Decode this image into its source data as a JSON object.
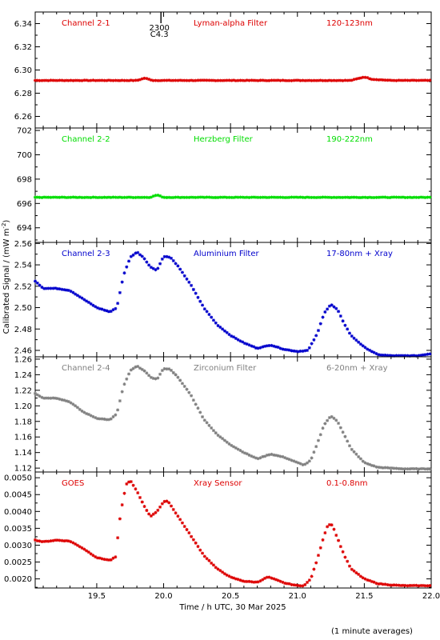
{
  "figure": {
    "ylabel": "Calibrated Signal / (mW m",
    "ylabel_sup": "-2",
    "ylabel_close": ")",
    "xlabel": "Time / h UTC, 30 Mar 2025",
    "footnote": "(1 minute averages)",
    "flare_marker": {
      "line1": "2300",
      "line2": "C4.3",
      "time": 19.98
    }
  },
  "chart_data": [
    {
      "type": "scatter",
      "panel_id": "ch2-1",
      "color": "#dd0000",
      "labels": [
        "Channel 2-1",
        "Lyman-alpha Filter",
        "120-123nm"
      ],
      "xlim": [
        19.04,
        22.0
      ],
      "ylim": [
        6.25,
        6.35
      ],
      "yticks": [
        6.26,
        6.28,
        6.3,
        6.32,
        6.34
      ],
      "ytick_labels": [
        "6.26",
        "6.28",
        "6.30",
        "6.32",
        "6.34"
      ],
      "series": [
        {
          "x": [
            19.04,
            19.8,
            19.86,
            19.92,
            20.5,
            21.4,
            21.5,
            21.56,
            21.7,
            22.0
          ],
          "y": [
            6.291,
            6.291,
            6.293,
            6.291,
            6.291,
            6.291,
            6.294,
            6.292,
            6.291,
            6.291
          ]
        }
      ]
    },
    {
      "type": "scatter",
      "panel_id": "ch2-2",
      "color": "#00dd00",
      "labels": [
        "Channel 2-2",
        "Herzberg Filter",
        "190-222nm"
      ],
      "xlim": [
        19.04,
        22.0
      ],
      "ylim": [
        692.8,
        702.2
      ],
      "yticks": [
        694,
        696,
        698,
        700,
        702
      ],
      "ytick_labels": [
        "694",
        "696",
        "698",
        "700",
        "702"
      ],
      "series": [
        {
          "x": [
            19.04,
            19.9,
            19.95,
            20.0,
            22.0
          ],
          "y": [
            696.5,
            696.5,
            696.7,
            696.5,
            696.5
          ]
        }
      ]
    },
    {
      "type": "scatter",
      "panel_id": "ch2-3",
      "color": "#0000cc",
      "labels": [
        "Channel 2-3",
        "Aluminium Filter",
        "17-80nm + Xray"
      ],
      "xlim": [
        19.04,
        22.0
      ],
      "ylim": [
        2.454,
        2.561
      ],
      "yticks": [
        2.46,
        2.48,
        2.5,
        2.52,
        2.54,
        2.56
      ],
      "ytick_labels": [
        "2.46",
        "2.48",
        "2.50",
        "2.52",
        "2.54",
        "2.56"
      ],
      "series": [
        {
          "x": [
            19.04,
            19.1,
            19.2,
            19.3,
            19.4,
            19.5,
            19.6,
            19.65,
            19.7,
            19.75,
            19.8,
            19.85,
            19.9,
            19.95,
            20.0,
            20.05,
            20.1,
            20.2,
            20.3,
            20.4,
            20.5,
            20.6,
            20.7,
            20.8,
            20.9,
            21.0,
            21.08,
            21.15,
            21.2,
            21.25,
            21.3,
            21.35,
            21.4,
            21.5,
            21.6,
            21.7,
            21.8,
            21.9,
            22.0
          ],
          "y": [
            2.525,
            2.518,
            2.518,
            2.516,
            2.508,
            2.5,
            2.496,
            2.5,
            2.53,
            2.547,
            2.552,
            2.547,
            2.538,
            2.535,
            2.548,
            2.547,
            2.54,
            2.522,
            2.5,
            2.484,
            2.474,
            2.467,
            2.462,
            2.465,
            2.461,
            2.459,
            2.46,
            2.476,
            2.495,
            2.503,
            2.498,
            2.485,
            2.474,
            2.463,
            2.456,
            2.455,
            2.455,
            2.455,
            2.457
          ]
        }
      ]
    },
    {
      "type": "scatter",
      "panel_id": "ch2-4",
      "color": "#808080",
      "labels": [
        "Channel 2-4",
        "Zirconium Filter",
        "6-20nm + Xray"
      ],
      "xlim": [
        19.04,
        22.0
      ],
      "ylim": [
        1.115,
        1.263
      ],
      "yticks": [
        1.12,
        1.14,
        1.16,
        1.18,
        1.2,
        1.22,
        1.24,
        1.26
      ],
      "ytick_labels": [
        "1.12",
        "1.14",
        "1.16",
        "1.18",
        "1.20",
        "1.22",
        "1.24",
        "1.26"
      ],
      "series": [
        {
          "x": [
            19.04,
            19.1,
            19.2,
            19.3,
            19.4,
            19.5,
            19.6,
            19.65,
            19.7,
            19.75,
            19.8,
            19.85,
            19.9,
            19.95,
            20.0,
            20.05,
            20.1,
            20.2,
            20.3,
            20.4,
            20.5,
            20.6,
            20.7,
            20.8,
            20.9,
            21.0,
            21.05,
            21.1,
            21.15,
            21.2,
            21.25,
            21.3,
            21.35,
            21.4,
            21.5,
            21.6,
            21.7,
            21.8,
            21.9,
            22.0
          ],
          "y": [
            1.216,
            1.21,
            1.21,
            1.205,
            1.192,
            1.184,
            1.182,
            1.19,
            1.225,
            1.245,
            1.251,
            1.246,
            1.237,
            1.234,
            1.248,
            1.247,
            1.238,
            1.215,
            1.183,
            1.163,
            1.15,
            1.14,
            1.132,
            1.138,
            1.134,
            1.127,
            1.124,
            1.13,
            1.152,
            1.176,
            1.187,
            1.18,
            1.163,
            1.145,
            1.127,
            1.121,
            1.12,
            1.119,
            1.119,
            1.119
          ]
        }
      ]
    },
    {
      "type": "scatter",
      "panel_id": "goes",
      "color": "#dd0000",
      "labels": [
        "GOES",
        "Xray Sensor",
        "0.1-0.8nm"
      ],
      "xlim": [
        19.04,
        22.0
      ],
      "ylim": [
        0.00173,
        0.00517
      ],
      "yticks": [
        0.002,
        0.0025,
        0.003,
        0.0035,
        0.004,
        0.0045,
        0.005
      ],
      "ytick_labels": [
        "0.0020",
        "0.0025",
        "0.0030",
        "0.0035",
        "0.0040",
        "0.0045",
        "0.0050"
      ],
      "xticks": [
        19.5,
        20.0,
        20.5,
        21.0,
        21.5,
        22.0
      ],
      "xtick_labels": [
        "19.5",
        "20.0",
        "20.5",
        "21.0",
        "21.5",
        "22.0"
      ],
      "series": [
        {
          "x": [
            19.04,
            19.1,
            19.2,
            19.3,
            19.4,
            19.5,
            19.6,
            19.64,
            19.68,
            19.72,
            19.75,
            19.8,
            19.85,
            19.9,
            19.95,
            20.0,
            20.03,
            20.1,
            20.2,
            20.3,
            20.4,
            20.5,
            20.6,
            20.7,
            20.78,
            20.85,
            20.9,
            21.0,
            21.05,
            21.1,
            21.15,
            21.2,
            21.23,
            21.26,
            21.3,
            21.35,
            21.4,
            21.5,
            21.6,
            21.7,
            21.8,
            21.9,
            22.0
          ],
          "y": [
            0.00315,
            0.0031,
            0.00315,
            0.00312,
            0.0029,
            0.00263,
            0.00255,
            0.00265,
            0.004,
            0.0048,
            0.00492,
            0.0046,
            0.0042,
            0.00385,
            0.004,
            0.00428,
            0.00432,
            0.0039,
            0.0033,
            0.0027,
            0.0023,
            0.00205,
            0.00193,
            0.0019,
            0.00206,
            0.00196,
            0.00188,
            0.0018,
            0.0018,
            0.002,
            0.0026,
            0.0033,
            0.00362,
            0.0036,
            0.0032,
            0.0027,
            0.0023,
            0.002,
            0.00186,
            0.00182,
            0.0018,
            0.0018,
            0.0018
          ]
        }
      ]
    }
  ]
}
